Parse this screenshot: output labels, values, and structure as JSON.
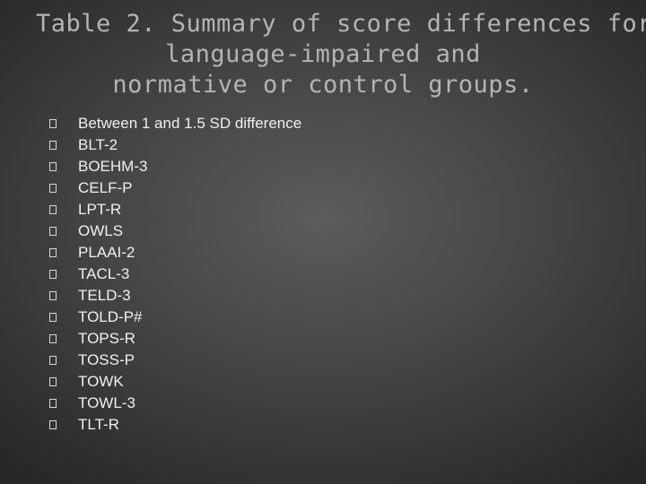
{
  "title": {
    "lines": [
      "Table 2. Summary of score differences for",
      "language-impaired and",
      "normative or control groups."
    ]
  },
  "list": {
    "items": [
      "Between 1 and 1.5 SD difference",
      "BLT-2",
      "BOEHM-3",
      "CELF-P",
      "LPT-R",
      "OWLS",
      "PLAAI-2",
      "TACL-3",
      "TELD-3",
      "TOLD-P#",
      "TOPS-R",
      "TOSS-P",
      "TOWK",
      "TOWL-3",
      "TLT-R"
    ]
  }
}
